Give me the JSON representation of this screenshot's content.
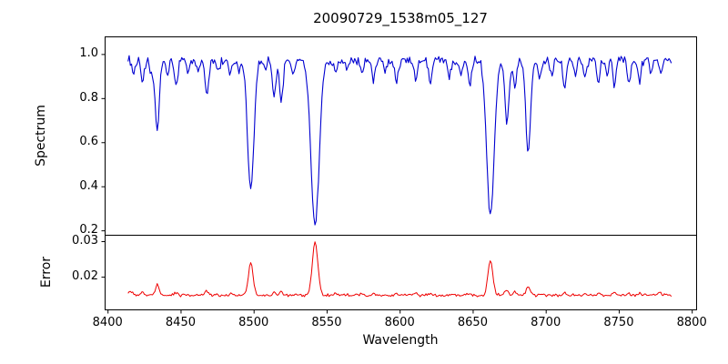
{
  "figure": {
    "title": "20090729_1538m05_127",
    "xlabel": "Wavelength",
    "ylabel_top": "Spectrum",
    "ylabel_bottom": "Error"
  },
  "chart_data": {
    "type": "line",
    "title": "20090729_1538m05_127",
    "xlabel": "Wavelength",
    "xlim": [
      8398,
      8803
    ],
    "x_ticks": [
      8400,
      8450,
      8500,
      8550,
      8600,
      8650,
      8700,
      8750,
      8800
    ],
    "x_data_range": [
      8414,
      8786
    ],
    "x_step": 0.8,
    "grid": false,
    "legend": "none",
    "panels": [
      {
        "name": "spectrum",
        "ylabel": "Spectrum",
        "color": "#0000d0",
        "ylim": [
          0.18,
          1.08
        ],
        "yticks": [
          0.2,
          0.4,
          0.6,
          0.8,
          1.0
        ],
        "ytick_labels": [
          "0.2",
          "0.4",
          "0.6",
          "0.8",
          "1.0"
        ],
        "continuum": 0.972,
        "noise_amplitude": 0.012,
        "absorption_lines": [
          [
            8418,
            0.06,
            1.0
          ],
          [
            8424,
            0.1,
            1.2
          ],
          [
            8430,
            0.07,
            1.0
          ],
          [
            8434,
            0.32,
            1.4
          ],
          [
            8441,
            0.08,
            1.0
          ],
          [
            8447,
            0.12,
            1.1
          ],
          [
            8455,
            0.06,
            1.0
          ],
          [
            8462,
            0.05,
            1.0
          ],
          [
            8468,
            0.15,
            1.3
          ],
          [
            8476,
            0.05,
            1.0
          ],
          [
            8484,
            0.07,
            1.0
          ],
          [
            8490,
            0.05,
            1.0
          ],
          [
            8498.03,
            0.58,
            2.2
          ],
          [
            8508,
            0.05,
            1.0
          ],
          [
            8514,
            0.17,
            1.2
          ],
          [
            8519,
            0.19,
            1.2
          ],
          [
            8527,
            0.07,
            1.0
          ],
          [
            8542.09,
            0.75,
            2.8
          ],
          [
            8556,
            0.06,
            1.0
          ],
          [
            8564,
            0.05,
            1.0
          ],
          [
            8574,
            0.07,
            1.0
          ],
          [
            8582,
            0.1,
            1.1
          ],
          [
            8590,
            0.05,
            1.0
          ],
          [
            8598,
            0.1,
            1.1
          ],
          [
            8611,
            0.09,
            1.1
          ],
          [
            8621,
            0.11,
            1.1
          ],
          [
            8634,
            0.07,
            1.0
          ],
          [
            8642,
            0.06,
            1.0
          ],
          [
            8648,
            0.11,
            1.1
          ],
          [
            8662.14,
            0.71,
            2.5
          ],
          [
            8673.5,
            0.28,
            1.4
          ],
          [
            8679,
            0.13,
            1.1
          ],
          [
            8688,
            0.41,
            1.7
          ],
          [
            8696,
            0.07,
            1.0
          ],
          [
            8704,
            0.06,
            1.0
          ],
          [
            8713,
            0.12,
            1.1
          ],
          [
            8720,
            0.06,
            1.0
          ],
          [
            8727,
            0.08,
            1.0
          ],
          [
            8736,
            0.1,
            1.1
          ],
          [
            8742,
            0.06,
            1.0
          ],
          [
            8747,
            0.12,
            1.1
          ],
          [
            8757,
            0.1,
            1.1
          ],
          [
            8764,
            0.1,
            1.1
          ],
          [
            8772,
            0.07,
            1.0
          ],
          [
            8779,
            0.06,
            1.0
          ]
        ]
      },
      {
        "name": "error",
        "ylabel": "Error",
        "color": "#ee0000",
        "ylim": [
          0.0108,
          0.0318
        ],
        "yticks": [
          0.02,
          0.03
        ],
        "ytick_labels": [
          "0.02",
          "0.03"
        ],
        "baseline": 0.0148,
        "noise_amplitude": 0.00025,
        "peaks": [
          [
            8416,
            0.0012,
            1.5
          ],
          [
            8424,
            0.0008,
            1.0
          ],
          [
            8434,
            0.003,
            1.2
          ],
          [
            8447,
            0.0008,
            1.0
          ],
          [
            8468,
            0.001,
            1.2
          ],
          [
            8484,
            0.0005,
            1.0
          ],
          [
            8498.03,
            0.009,
            1.6
          ],
          [
            8514,
            0.001,
            1.0
          ],
          [
            8519,
            0.001,
            1.0
          ],
          [
            8542.09,
            0.0147,
            1.9
          ],
          [
            8556,
            0.0004,
            1.0
          ],
          [
            8574,
            0.0004,
            1.0
          ],
          [
            8582,
            0.0006,
            1.0
          ],
          [
            8598,
            0.0006,
            1.0
          ],
          [
            8611,
            0.0005,
            1.0
          ],
          [
            8621,
            0.0006,
            1.0
          ],
          [
            8648,
            0.0006,
            1.0
          ],
          [
            8662.14,
            0.0097,
            1.7
          ],
          [
            8673.5,
            0.0014,
            1.2
          ],
          [
            8679,
            0.0008,
            1.0
          ],
          [
            8688,
            0.0024,
            1.3
          ],
          [
            8713,
            0.0007,
            1.0
          ],
          [
            8727,
            0.0005,
            1.0
          ],
          [
            8736,
            0.0006,
            1.0
          ],
          [
            8747,
            0.0007,
            1.0
          ],
          [
            8757,
            0.0006,
            1.0
          ],
          [
            8764,
            0.0006,
            1.0
          ],
          [
            8778,
            0.0008,
            1.2
          ]
        ]
      }
    ]
  }
}
